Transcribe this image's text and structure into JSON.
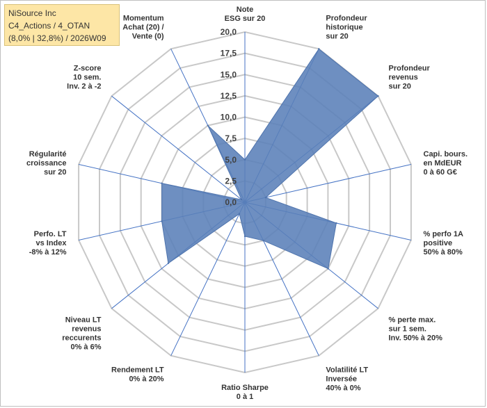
{
  "header": {
    "line1": "NiSource Inc",
    "line2": "C4_Actions / 4_OTAN",
    "line3": "(8,0% | 32,8%) / 2026W09"
  },
  "colors": {
    "fill": "#5a7fb8",
    "stroke": "#4f74ad",
    "grid": "#c8c8c8",
    "axis": "#4472c4",
    "header_bg": "#fde6a6"
  },
  "chart_data": {
    "type": "radar",
    "scale": {
      "min": 0,
      "max": 20,
      "step": 2.5
    },
    "tick_labels": [
      "0,0",
      "2,5",
      "5,0",
      "7,5",
      "10,0",
      "12,5",
      "15,0",
      "17,5",
      "20,0"
    ],
    "axes": [
      {
        "label": [
          "Note",
          "ESG sur 20"
        ],
        "value": 5.0
      },
      {
        "label": [
          "Profondeur",
          "historique",
          "sur 20"
        ],
        "value": 20.0
      },
      {
        "label": [
          "Profondeur",
          "revenus",
          "sur 20"
        ],
        "value": 20.0
      },
      {
        "label": [
          "Capi. bours.",
          "en MdEUR",
          "0 à 60 G€"
        ],
        "value": 2.5
      },
      {
        "label": [
          "% perfo 1A",
          "positive",
          "50% à 80%"
        ],
        "value": 11.0
      },
      {
        "label": [
          "% perte max.",
          "sur 1 sem.",
          "Inv. 50% à 20%"
        ],
        "value": 12.5
      },
      {
        "label": [
          "Volatilité LT",
          "Inversée",
          "40% à 0%"
        ],
        "value": 5.0
      },
      {
        "label": [
          "Ratio Sharpe",
          "0 à 1"
        ],
        "value": 4.0
      },
      {
        "label": [
          "Rendement LT",
          "0% à 20%"
        ],
        "value": 1.5
      },
      {
        "label": [
          "Niveau LT",
          "revenus",
          "reccurents",
          "0% à 6%"
        ],
        "value": 11.5
      },
      {
        "label": [
          "Perfo. LT",
          "vs Index",
          "-8% à 12%"
        ],
        "value": 10.0
      },
      {
        "label": [
          "Régularité",
          "croissance",
          "sur 20"
        ],
        "value": 10.0
      },
      {
        "label": [
          "Z-score",
          "10 sem.",
          "Inv. 2 à -2"
        ],
        "value": 0.5
      },
      {
        "label": [
          "Momentum",
          "Achat (20) /",
          "Vente (0)"
        ],
        "value": 10.0
      }
    ]
  }
}
